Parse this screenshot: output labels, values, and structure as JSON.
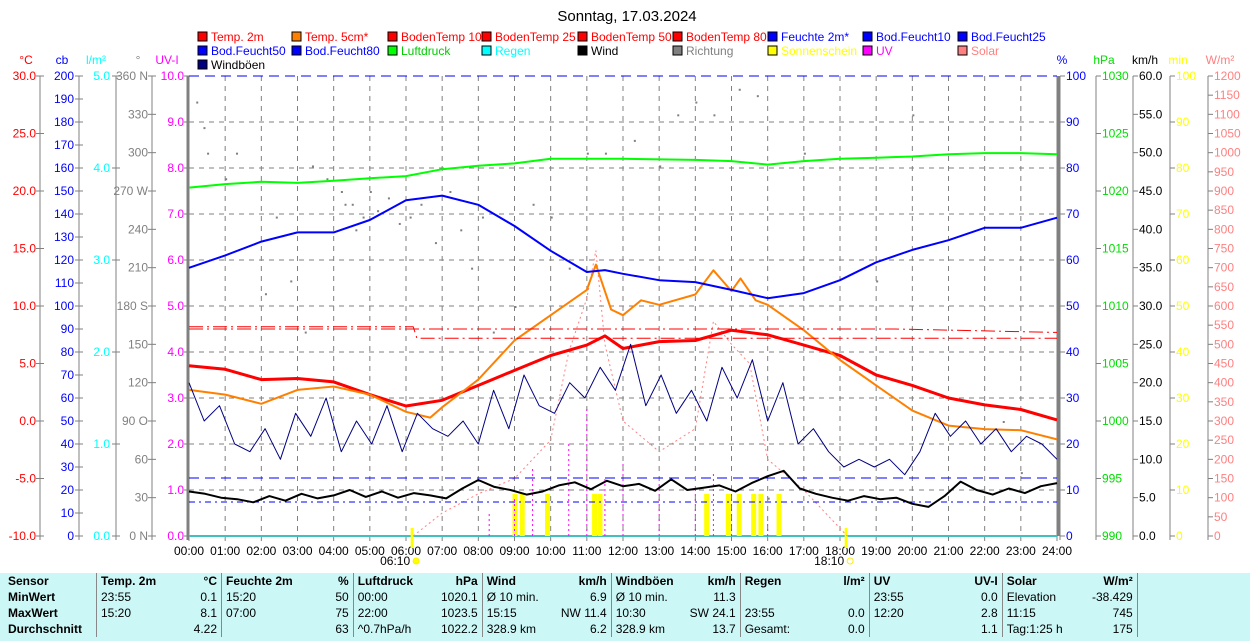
{
  "title": "Sonntag, 17.03.2024",
  "legend": [
    {
      "label": "Temp. 2m",
      "color": "#ff0000",
      "text": "#ff0000"
    },
    {
      "label": "Temp. 5cm*",
      "color": "#ff8000",
      "text": "#ff0000"
    },
    {
      "label": "BodenTemp 10",
      "color": "#ff0000",
      "text": "#ff0000"
    },
    {
      "label": "BodenTemp 25",
      "color": "#ff0000",
      "text": "#ff0000"
    },
    {
      "label": "BodenTemp 50",
      "color": "#ff0000",
      "text": "#ff0000"
    },
    {
      "label": "BodenTemp 80",
      "color": "#ff0000",
      "text": "#ff0000"
    },
    {
      "label": "Feuchte 2m*",
      "color": "#0000ff",
      "text": "#0000ff"
    },
    {
      "label": "Bod.Feucht10",
      "color": "#0000ff",
      "text": "#0000ff"
    },
    {
      "label": "Bod.Feucht25",
      "color": "#0000ff",
      "text": "#0000ff"
    },
    {
      "label": "Bod.Feucht50",
      "color": "#0000ff",
      "text": "#0000ff"
    },
    {
      "label": "Bod.Feucht80",
      "color": "#0000ff",
      "text": "#0000ff"
    },
    {
      "label": "Luftdruck",
      "color": "#00ff00",
      "text": "#00cc00"
    },
    {
      "label": "Regen",
      "color": "#00ffff",
      "text": "#00ffff"
    },
    {
      "label": "Wind",
      "color": "#000000",
      "text": "#000000"
    },
    {
      "label": "Richtung",
      "color": "#808080",
      "text": "#808080"
    },
    {
      "label": "Sonnenschein",
      "color": "#ffff00",
      "text": "#ffff00"
    },
    {
      "label": "UV",
      "color": "#ff00ff",
      "text": "#ff00ff"
    },
    {
      "label": "Solar",
      "color": "#ff8080",
      "text": "#ff8080"
    },
    {
      "label": "Windböen",
      "color": "#000080",
      "text": "#000000"
    }
  ],
  "chart_data": {
    "type": "line",
    "title": "Sonntag, 17.03.2024",
    "x_ticks": [
      "00:00",
      "01:00",
      "02:00",
      "03:00",
      "04:00",
      "05:00",
      "06:00",
      "07:00",
      "08:00",
      "09:00",
      "10:00",
      "11:00",
      "12:00",
      "13:00",
      "14:00",
      "15:00",
      "16:00",
      "17:00",
      "18:00",
      "19:00",
      "20:00",
      "21:00",
      "22:00",
      "23:00",
      "24:00"
    ],
    "sunrise": {
      "time": "06:10",
      "hour": 6.17
    },
    "sunset": {
      "time": "18:10",
      "hour": 18.17
    },
    "axes_left": [
      {
        "unit": "°C",
        "color": "#ff0000",
        "min": -10,
        "max": 30,
        "labels": [
          "30.0",
          "25.0",
          "20.0",
          "15.0",
          "10.0",
          "5.0",
          "0.0",
          "-5.0",
          "-10.0"
        ]
      },
      {
        "unit": "cb",
        "color": "#0000ff",
        "min": 0,
        "max": 200,
        "labels": [
          "200",
          "190",
          "180",
          "170",
          "160",
          "150",
          "140",
          "130",
          "120",
          "110",
          "100",
          "90",
          "80",
          "70",
          "60",
          "50",
          "40",
          "30",
          "20",
          "10",
          "0"
        ]
      },
      {
        "unit": "l/m²",
        "color": "#00ffff",
        "min": 0,
        "max": 5,
        "labels": [
          "5.0",
          "4.0",
          "3.0",
          "2.0",
          "1.0",
          "0.0"
        ]
      },
      {
        "unit": "°",
        "color": "#808080",
        "min": 0,
        "max": 360,
        "labels": [
          "360 N",
          "330",
          "300",
          "270 W",
          "240",
          "210",
          "180 S",
          "150",
          "120",
          "90 O",
          "60",
          "30",
          "0 N"
        ]
      },
      {
        "unit": "UV-I",
        "color": "#ff00ff",
        "min": 0,
        "max": 10,
        "labels": [
          "10.0",
          "9.0",
          "8.0",
          "7.0",
          "6.0",
          "5.0",
          "4.0",
          "3.0",
          "2.0",
          "1.0",
          "0.0"
        ]
      }
    ],
    "axes_right": [
      {
        "unit": "%",
        "color": "#0000ff",
        "min": 0,
        "max": 100,
        "labels": [
          "100",
          "90",
          "80",
          "70",
          "60",
          "50",
          "40",
          "30",
          "20",
          "10",
          "0"
        ]
      },
      {
        "unit": "hPa",
        "color": "#00dd00",
        "min": 990,
        "max": 1030,
        "labels": [
          "1030",
          "1025",
          "1020",
          "1015",
          "1010",
          "1005",
          "1000",
          "995",
          "990"
        ]
      },
      {
        "unit": "km/h",
        "color": "#000000",
        "min": 0,
        "max": 60,
        "labels": [
          "60.0",
          "55.0",
          "50.0",
          "45.0",
          "40.0",
          "35.0",
          "30.0",
          "25.0",
          "20.0",
          "15.0",
          "10.0",
          "5.0",
          "0.0"
        ]
      },
      {
        "unit": "min",
        "color": "#ffff00",
        "min": 0,
        "max": 100,
        "labels": [
          "100",
          "90",
          "80",
          "70",
          "60",
          "50",
          "40",
          "30",
          "20",
          "10",
          "0"
        ]
      },
      {
        "unit": "W/m²",
        "color": "#ff8080",
        "min": 0,
        "max": 1200,
        "labels": [
          "1200",
          "1150",
          "1100",
          "1050",
          "1000",
          "950",
          "900",
          "850",
          "800",
          "750",
          "700",
          "650",
          "600",
          "550",
          "500",
          "450",
          "400",
          "350",
          "300",
          "250",
          "200",
          "150",
          "100",
          "50",
          "0"
        ]
      }
    ],
    "series": [
      {
        "name": "Temp. 2m",
        "axis": "°C",
        "color": "#ff0000",
        "width": 3,
        "x": [
          0,
          1,
          2,
          3,
          4,
          5,
          6,
          7,
          8,
          9,
          10,
          11,
          11.5,
          12,
          13,
          14,
          15,
          16,
          17,
          18,
          19,
          20,
          21,
          22,
          23,
          24
        ],
        "y": [
          4.8,
          4.5,
          3.6,
          3.7,
          3.4,
          2.3,
          1.3,
          1.8,
          3.1,
          4.4,
          5.7,
          6.6,
          7.4,
          6.3,
          6.9,
          7.0,
          7.9,
          7.5,
          6.6,
          5.7,
          4.0,
          3.1,
          2.0,
          1.4,
          1.0,
          0.1
        ]
      },
      {
        "name": "Temp. 5cm*",
        "axis": "°C",
        "color": "#ff8000",
        "width": 2,
        "x": [
          0,
          1,
          2,
          3,
          4,
          5,
          6,
          6.67,
          7,
          8,
          9,
          10,
          11,
          11.25,
          11.67,
          12,
          12.5,
          13,
          14,
          14.5,
          15,
          15.25,
          15.67,
          16,
          17,
          18,
          19,
          20,
          21,
          22,
          23,
          24
        ],
        "y": [
          2.7,
          2.3,
          1.5,
          2.7,
          3.0,
          2.3,
          0.8,
          0.3,
          1.2,
          3.6,
          7.0,
          9.2,
          11.4,
          13.6,
          9.7,
          9.2,
          10.5,
          10.1,
          11.0,
          13.1,
          11.3,
          12.4,
          10.5,
          10.1,
          7.9,
          5.3,
          3.1,
          0.9,
          -0.4,
          -0.7,
          -0.8,
          -1.6
        ]
      },
      {
        "name": "Feuchte 2m*",
        "axis": "%",
        "color": "#0000ff",
        "width": 2,
        "x": [
          0,
          1,
          2,
          3,
          4,
          5,
          6,
          7,
          8,
          9,
          10,
          11,
          11.5,
          12,
          13,
          14,
          15,
          16,
          17,
          18,
          19,
          20,
          21,
          22,
          23,
          24
        ],
        "y": [
          58.3,
          61,
          64,
          66,
          66,
          68.7,
          73,
          74,
          72,
          67.4,
          62,
          57.4,
          57.8,
          57,
          55.6,
          55.2,
          53.5,
          51.7,
          52.8,
          55.6,
          59.5,
          62.2,
          64.3,
          67,
          67,
          69.2
        ]
      },
      {
        "name": "Luftdruck",
        "axis": "hPa",
        "color": "#00ff00",
        "width": 2,
        "x": [
          0,
          1,
          2,
          3,
          4,
          5,
          6,
          7,
          8,
          9,
          10,
          12,
          14,
          15,
          16,
          17,
          18,
          19,
          20,
          21,
          22,
          23,
          24
        ],
        "y": [
          1020.3,
          1020.6,
          1020.8,
          1020.7,
          1020.9,
          1021.1,
          1021.3,
          1021.9,
          1022.2,
          1022.4,
          1022.8,
          1022.8,
          1022.7,
          1022.6,
          1022.3,
          1022.6,
          1022.8,
          1022.9,
          1023.0,
          1023.2,
          1023.3,
          1023.3,
          1023.2
        ]
      },
      {
        "name": "BodenTemp 10",
        "axis": "°C",
        "color": "#ff0000",
        "width": 1,
        "dash": "14 4 2 4",
        "x": [
          0,
          6.2,
          6.3,
          24
        ],
        "y": [
          8.2,
          8.2,
          7.2,
          7.2
        ]
      },
      {
        "name": "BodenTemp 25",
        "axis": "°C",
        "color": "#ff0000",
        "width": 1,
        "dash": "14 4 2 4",
        "x": [
          0,
          19.5,
          24
        ],
        "y": [
          8.0,
          8.0,
          7.7
        ]
      },
      {
        "name": "Bod.Feucht10",
        "axis": "%",
        "color": "#0000ff",
        "width": 1,
        "dash": "10 6",
        "x": [
          0,
          24
        ],
        "y": [
          100,
          100
        ]
      },
      {
        "name": "Bod.Feucht50",
        "axis": "%",
        "color": "#0000ff",
        "width": 1,
        "dash": "10 6",
        "x": [
          0,
          24
        ],
        "y": [
          12.6,
          12.6
        ]
      },
      {
        "name": "Bod.Feucht80",
        "axis": "%",
        "color": "#0000ff",
        "width": 1,
        "dash": "6 4 2 4",
        "x": [
          0,
          24
        ],
        "y": [
          7.4,
          7.4
        ]
      },
      {
        "name": "Wind",
        "axis": "km/h",
        "color": "#000000",
        "width": 2,
        "y": [
          5.8,
          5.5,
          5.0,
          4.8,
          4.4,
          5.2,
          4.6,
          5.5,
          4.9,
          5.3,
          6.0,
          5.1,
          5.8,
          5.0,
          5.6,
          5.3,
          4.9,
          6.2,
          7.3,
          6.4,
          6.0,
          5.4,
          5.8,
          6.6,
          7.0,
          6.1,
          7.2,
          6.5,
          6.8,
          5.9,
          7.4,
          6.0,
          6.3,
          6.6,
          5.8,
          6.9,
          7.8,
          8.5,
          6.2,
          5.5,
          5.0,
          4.6,
          5.2,
          4.8,
          5.0,
          4.2,
          3.8,
          5.2,
          7.1,
          6.0,
          5.4,
          6.2,
          5.6,
          6.5,
          6.9
        ]
      },
      {
        "name": "Windböen",
        "axis": "km/h",
        "color": "#000080",
        "width": 1,
        "y": [
          20,
          15,
          17,
          12,
          11,
          14,
          10,
          16,
          13,
          18,
          11,
          15,
          12,
          17,
          11,
          16,
          14,
          13,
          15,
          12,
          19,
          14,
          21,
          17,
          16,
          20,
          18,
          22,
          19,
          25,
          17,
          21,
          16,
          19,
          15,
          22,
          18,
          23,
          15,
          20,
          12,
          14,
          11,
          9,
          10,
          9,
          10,
          8,
          11,
          16,
          13,
          15,
          12,
          14,
          11,
          13,
          12,
          10
        ]
      }
    ],
    "uv": {
      "axis": "UV-I",
      "color": "#ff00ff",
      "x": [
        8.3,
        9.0,
        9.5,
        10.5,
        11.0,
        11.5,
        12.0,
        13.0,
        14.0,
        14.5,
        15.0,
        16.0
      ],
      "y": [
        0.5,
        0.8,
        1.5,
        2.0,
        2.8,
        1.3,
        1.6,
        1.2,
        1.0,
        1.4,
        1.1,
        0.3
      ]
    },
    "solar": {
      "axis": "W/m²",
      "color": "#ff8080",
      "x": [
        6.2,
        7.0,
        8.0,
        9.0,
        10.0,
        10.5,
        11.0,
        11.25,
        11.5,
        12.0,
        13.0,
        14.0,
        14.5,
        15.0,
        15.5,
        16.0,
        17.0,
        18.2
      ],
      "y": [
        0,
        60,
        110,
        150,
        250,
        480,
        620,
        745,
        500,
        300,
        220,
        280,
        560,
        500,
        450,
        200,
        120,
        0
      ]
    },
    "sunshine_minutes": {
      "x": [
        9.0,
        9.2,
        9.9,
        11.2,
        11.35,
        14.3,
        14.9,
        15.2,
        15.6,
        15.8,
        16.3
      ],
      "y": [
        5,
        5,
        5,
        5,
        5,
        5,
        5,
        5,
        5,
        5,
        5
      ]
    },
    "direction_deg": {
      "x": [
        0.2,
        0.4,
        0.5,
        1.0,
        1.3,
        2.1,
        2.4,
        2.8,
        3.2,
        3.4,
        3.8,
        4.2,
        4.3,
        4.5,
        4.6,
        4.8,
        5.0,
        5.2,
        5.5,
        5.8,
        6.1,
        6.4,
        6.8,
        7.2,
        7.5,
        7.8,
        8.1,
        8.4,
        9.0,
        9.5,
        10.0,
        10.5,
        11.0,
        11.5,
        12.3,
        13.0,
        13.5,
        14.0,
        14.5,
        15.2,
        15.7,
        16.0,
        17.0,
        19.0,
        20.0,
        22.5,
        23.0
      ],
      "y": [
        340,
        320,
        300,
        280,
        300,
        190,
        250,
        200,
        160,
        290,
        280,
        270,
        260,
        260,
        240,
        250,
        270,
        255,
        265,
        245,
        250,
        260,
        230,
        270,
        240,
        210,
        250,
        160,
        180,
        260,
        250,
        210,
        300,
        300,
        310,
        290,
        330,
        340,
        330,
        350,
        345,
        30,
        300,
        200,
        330,
        90,
        50
      ]
    }
  },
  "stats": {
    "headers": [
      [
        "Sensor",
        ""
      ],
      [
        "Temp. 2m",
        "°C"
      ],
      [
        "Feuchte 2m",
        "%"
      ],
      [
        "Luftdruck",
        "hPa"
      ],
      [
        "Wind",
        "km/h"
      ],
      [
        "Windböen",
        "km/h"
      ],
      [
        "Regen",
        "l/m²"
      ],
      [
        "UV",
        "UV-I"
      ],
      [
        "Solar",
        "W/m²"
      ]
    ],
    "rows": [
      {
        "label": "MinWert",
        "cells": [
          [
            "23:55",
            "0.1"
          ],
          [
            "15:20",
            "50"
          ],
          [
            "00:00",
            "1020.1"
          ],
          [
            "Ø 10 min.",
            "6.9"
          ],
          [
            "Ø 10 min.",
            "11.3"
          ],
          [
            "",
            ""
          ],
          [
            "23:55",
            "0.0"
          ],
          [
            "Elevation",
            "-38.429"
          ]
        ]
      },
      {
        "label": "MaxWert",
        "cells": [
          [
            "15:20",
            "8.1"
          ],
          [
            "07:00",
            "75"
          ],
          [
            "22:00",
            "1023.5"
          ],
          [
            "15:15",
            "NW 11.4"
          ],
          [
            "10:30",
            "SW 24.1"
          ],
          [
            "23:55",
            "0.0"
          ],
          [
            "12:20",
            "2.8"
          ],
          [
            "11:15",
            "745"
          ]
        ]
      },
      {
        "label": "Durchschnitt",
        "cells": [
          [
            "",
            "4.22"
          ],
          [
            "",
            "63"
          ],
          [
            "^0.7hPa/h",
            "1022.2"
          ],
          [
            "328.9 km",
            "6.2"
          ],
          [
            "328.9 km",
            "13.7"
          ],
          [
            "Gesamt:",
            "0.0"
          ],
          [
            "",
            "1.1"
          ],
          [
            "Tag:1:25 h",
            "175"
          ]
        ]
      }
    ]
  }
}
